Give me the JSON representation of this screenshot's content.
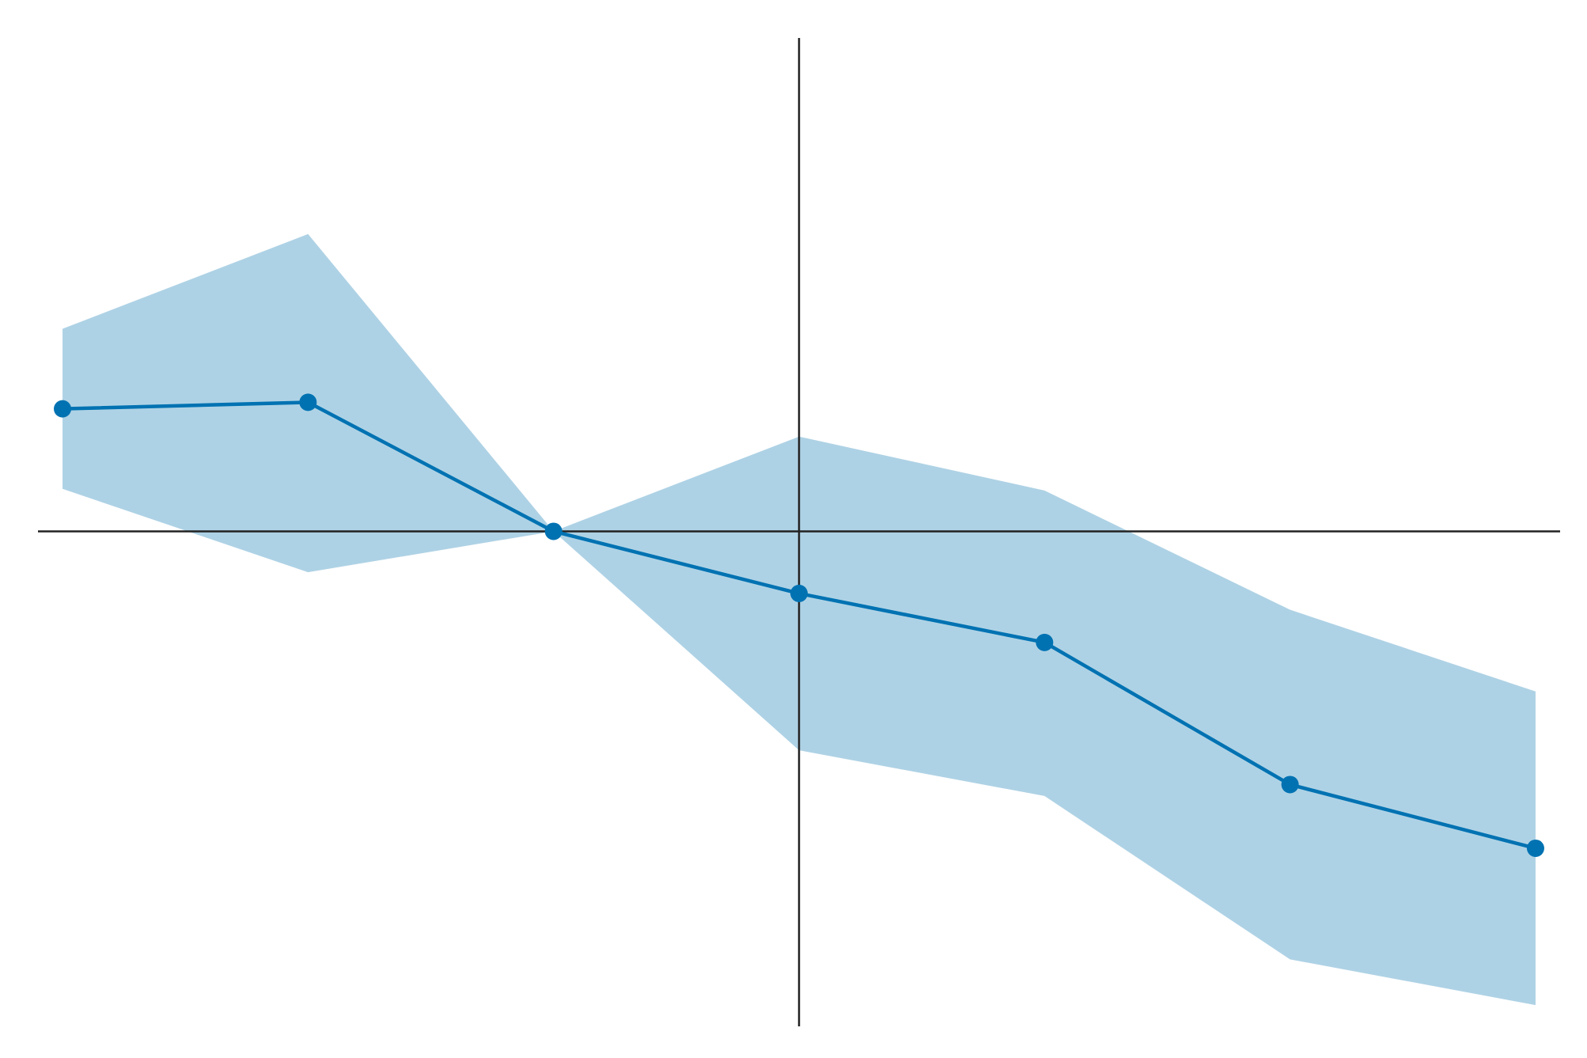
{
  "chart_data": {
    "type": "line",
    "title": "",
    "xlabel": "",
    "ylabel": "",
    "x": [
      -3,
      -2,
      -1,
      0,
      1,
      2,
      3
    ],
    "series": [
      {
        "values": [
          0.75,
          0.79,
          0.0,
          -0.38,
          -0.68,
          -1.55,
          -1.94
        ],
        "lower": [
          0.26,
          -0.25,
          0.0,
          -1.34,
          -1.62,
          -2.62,
          -2.9
        ],
        "upper": [
          1.24,
          1.82,
          0.0,
          0.58,
          0.25,
          -0.48,
          -0.98
        ]
      }
    ],
    "xlim": [
      -3.1,
      3.1
    ],
    "ylim": [
      -3.03,
      3.02
    ],
    "reference_lines": {
      "x": 0,
      "y": 0
    },
    "grid": false,
    "colors": {
      "line": "#0072b2",
      "band": "#aed2e5",
      "axis": "#222222"
    }
  }
}
